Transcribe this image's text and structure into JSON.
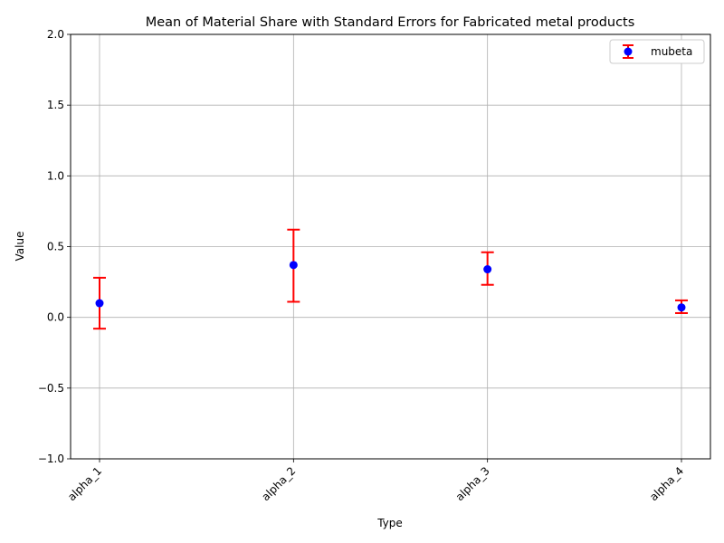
{
  "chart_data": {
    "type": "scatter",
    "title": "Mean of Material Share with Standard Errors for Fabricated metal products",
    "xlabel": "Type",
    "ylabel": "Value",
    "categories": [
      "alpha_1",
      "alpha_2",
      "alpha_3",
      "alpha_4"
    ],
    "series": [
      {
        "name": "mubeta",
        "values": [
          0.1,
          0.37,
          0.34,
          0.07
        ],
        "error_low": [
          -0.08,
          0.11,
          0.23,
          0.03
        ],
        "error_high": [
          0.28,
          0.62,
          0.46,
          0.12
        ],
        "marker_color": "#0000ff",
        "error_color": "#ff0000"
      }
    ],
    "ylim": [
      -1.0,
      2.0
    ],
    "yticks": [
      -1.0,
      -0.5,
      0.0,
      0.5,
      1.0,
      1.5,
      2.0
    ],
    "ytick_labels": [
      "−1.0",
      "−0.5",
      "0.0",
      "0.5",
      "1.0",
      "1.5",
      "2.0"
    ],
    "grid": true,
    "legend_position": "top-right"
  }
}
